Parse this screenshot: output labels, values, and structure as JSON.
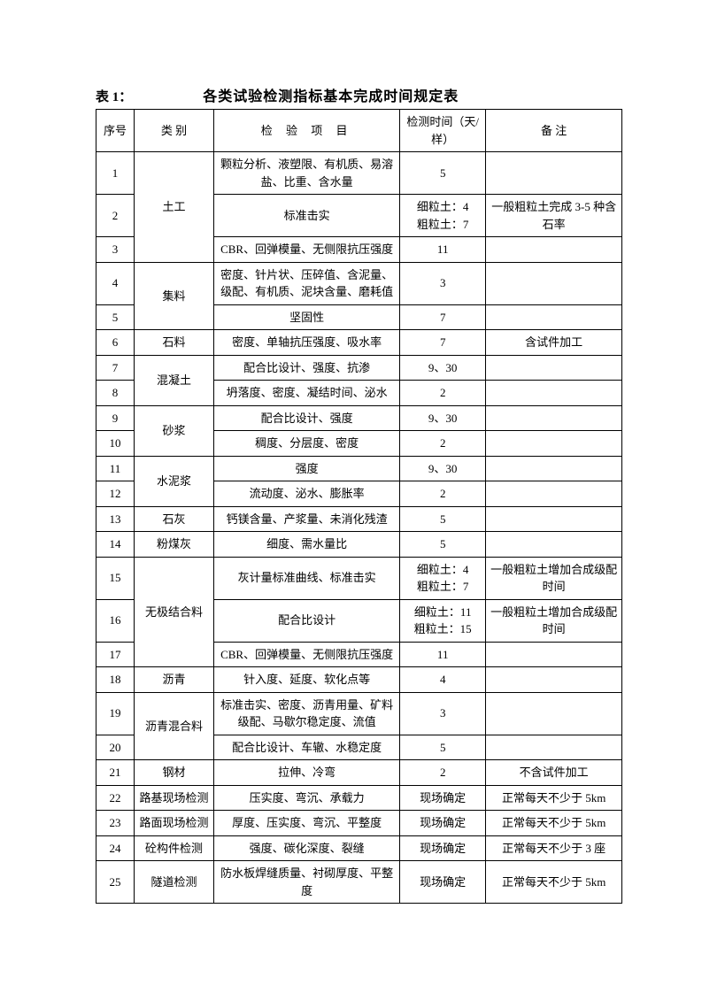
{
  "table_label": "表 1：",
  "table_title": "各类试验检测指标基本完成时间规定表",
  "headers": {
    "seq": "序号",
    "category": "类 别",
    "item": "检 验 项 目",
    "time": "检测时间（天/样）",
    "note": "备   注"
  },
  "rows": {
    "r1": {
      "seq": "1",
      "item": "颗粒分析、液塑限、有机质、易溶盐、比重、含水量",
      "time": "5",
      "note": ""
    },
    "r2": {
      "seq": "2",
      "item": "标准击实",
      "time": "细粒土：4\n粗粒土：7",
      "note": "一般粗粒土完成 3-5 种含石率"
    },
    "r3": {
      "seq": "3",
      "item": "CBR、回弹模量、无侧限抗压强度",
      "time": "11",
      "note": ""
    },
    "cat_tu": "土工",
    "r4": {
      "seq": "4",
      "item": "密度、针片状、压碎值、含泥量、级配、有机质、泥块含量、磨耗值",
      "time": "3",
      "note": ""
    },
    "r5": {
      "seq": "5",
      "item": "坚固性",
      "time": "7",
      "note": ""
    },
    "cat_ji": "集料",
    "r6": {
      "seq": "6",
      "cat": "石料",
      "item": "密度、单轴抗压强度、吸水率",
      "time": "7",
      "note": "含试件加工"
    },
    "r7": {
      "seq": "7",
      "item": "配合比设计、强度、抗渗",
      "time": "9、30",
      "note": ""
    },
    "r8": {
      "seq": "8",
      "item": "坍落度、密度、凝结时间、泌水",
      "time": "2",
      "note": ""
    },
    "cat_hn": "混凝土",
    "r9": {
      "seq": "9",
      "item": "配合比设计、强度",
      "time": "9、30",
      "note": ""
    },
    "r10": {
      "seq": "10",
      "item": "稠度、分层度、密度",
      "time": "2",
      "note": ""
    },
    "cat_sj": "砂浆",
    "r11": {
      "seq": "11",
      "item": "强度",
      "time": "9、30",
      "note": ""
    },
    "r12": {
      "seq": "12",
      "item": "流动度、泌水、膨胀率",
      "time": "2",
      "note": ""
    },
    "cat_sn": "水泥浆",
    "r13": {
      "seq": "13",
      "cat": "石灰",
      "item": "钙镁含量、产浆量、未消化残渣",
      "time": "5",
      "note": ""
    },
    "r14": {
      "seq": "14",
      "cat": "粉煤灰",
      "item": "细度、需水量比",
      "time": "5",
      "note": ""
    },
    "r15": {
      "seq": "15",
      "item": "灰计量标准曲线、标准击实",
      "time": "细粒土：4\n粗粒土：7",
      "note": "一般粗粒土增加合成级配时间"
    },
    "r16": {
      "seq": "16",
      "item": "配合比设计",
      "time": "细粒土：11\n粗粒土：15",
      "note": "一般粗粒土增加合成级配时间"
    },
    "r17": {
      "seq": "17",
      "item": "CBR、回弹模量、无侧限抗压强度",
      "time": "11",
      "note": ""
    },
    "cat_wj": "无极结合料",
    "r18": {
      "seq": "18",
      "cat": "沥青",
      "item": "针入度、延度、软化点等",
      "time": "4",
      "note": ""
    },
    "r19": {
      "seq": "19",
      "item": "标准击实、密度、沥青用量、矿料级配、马歇尔稳定度、流值",
      "time": "3",
      "note": ""
    },
    "r20": {
      "seq": "20",
      "item": "配合比设计、车辙、水稳定度",
      "time": "5",
      "note": ""
    },
    "cat_lq": "沥青混合料",
    "r21": {
      "seq": "21",
      "cat": "钢材",
      "item": "拉伸、冷弯",
      "time": "2",
      "note": "不含试件加工"
    },
    "r22": {
      "seq": "22",
      "cat": "路基现场检测",
      "item": "压实度、弯沉、承载力",
      "time": "现场确定",
      "note": "正常每天不少于 5km"
    },
    "r23": {
      "seq": "23",
      "cat": "路面现场检测",
      "item": "厚度、压实度、弯沉、平整度",
      "time": "现场确定",
      "note": "正常每天不少于 5km"
    },
    "r24": {
      "seq": "24",
      "cat": "砼构件检测",
      "item": "强度、碳化深度、裂缝",
      "time": "现场确定",
      "note": "正常每天不少于 3 座"
    },
    "r25": {
      "seq": "25",
      "cat": "隧道检测",
      "item": "防水板焊缝质量、衬砌厚度、平整度",
      "time": "现场确定",
      "note": "正常每天不少于 5km"
    }
  }
}
